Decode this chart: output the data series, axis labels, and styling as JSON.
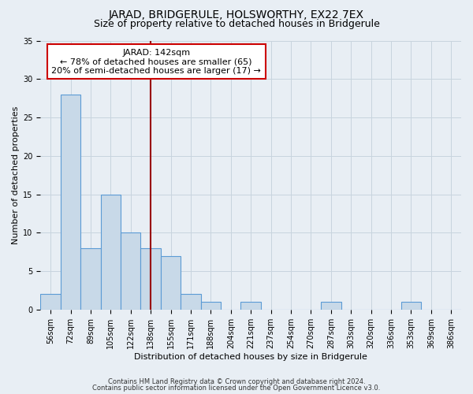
{
  "title": "JARAD, BRIDGERULE, HOLSWORTHY, EX22 7EX",
  "subtitle": "Size of property relative to detached houses in Bridgerule",
  "xlabel": "Distribution of detached houses by size in Bridgerule",
  "ylabel": "Number of detached properties",
  "categories": [
    "56sqm",
    "72sqm",
    "89sqm",
    "105sqm",
    "122sqm",
    "138sqm",
    "155sqm",
    "171sqm",
    "188sqm",
    "204sqm",
    "221sqm",
    "237sqm",
    "254sqm",
    "270sqm",
    "287sqm",
    "303sqm",
    "320sqm",
    "336sqm",
    "353sqm",
    "369sqm",
    "386sqm"
  ],
  "values": [
    2,
    28,
    8,
    15,
    10,
    8,
    7,
    2,
    1,
    0,
    1,
    0,
    0,
    0,
    1,
    0,
    0,
    0,
    1,
    0,
    0
  ],
  "bar_color": "#c8d9e8",
  "bar_edge_color": "#5b9bd5",
  "vline_x_index": 5,
  "vline_color": "#990000",
  "annotation_line1": "JARAD: 142sqm",
  "annotation_line2": "← 78% of detached houses are smaller (65)",
  "annotation_line3": "20% of semi-detached houses are larger (17) →",
  "annotation_box_color": "#ffffff",
  "annotation_box_edge_color": "#cc0000",
  "ylim": [
    0,
    35
  ],
  "yticks": [
    0,
    5,
    10,
    15,
    20,
    25,
    30,
    35
  ],
  "grid_color": "#c8d4de",
  "bg_color": "#e8eef4",
  "footer_line1": "Contains HM Land Registry data © Crown copyright and database right 2024.",
  "footer_line2": "Contains public sector information licensed under the Open Government Licence v3.0.",
  "title_fontsize": 10,
  "subtitle_fontsize": 9,
  "axis_label_fontsize": 8,
  "tick_fontsize": 7,
  "annotation_fontsize": 8,
  "footer_fontsize": 6
}
